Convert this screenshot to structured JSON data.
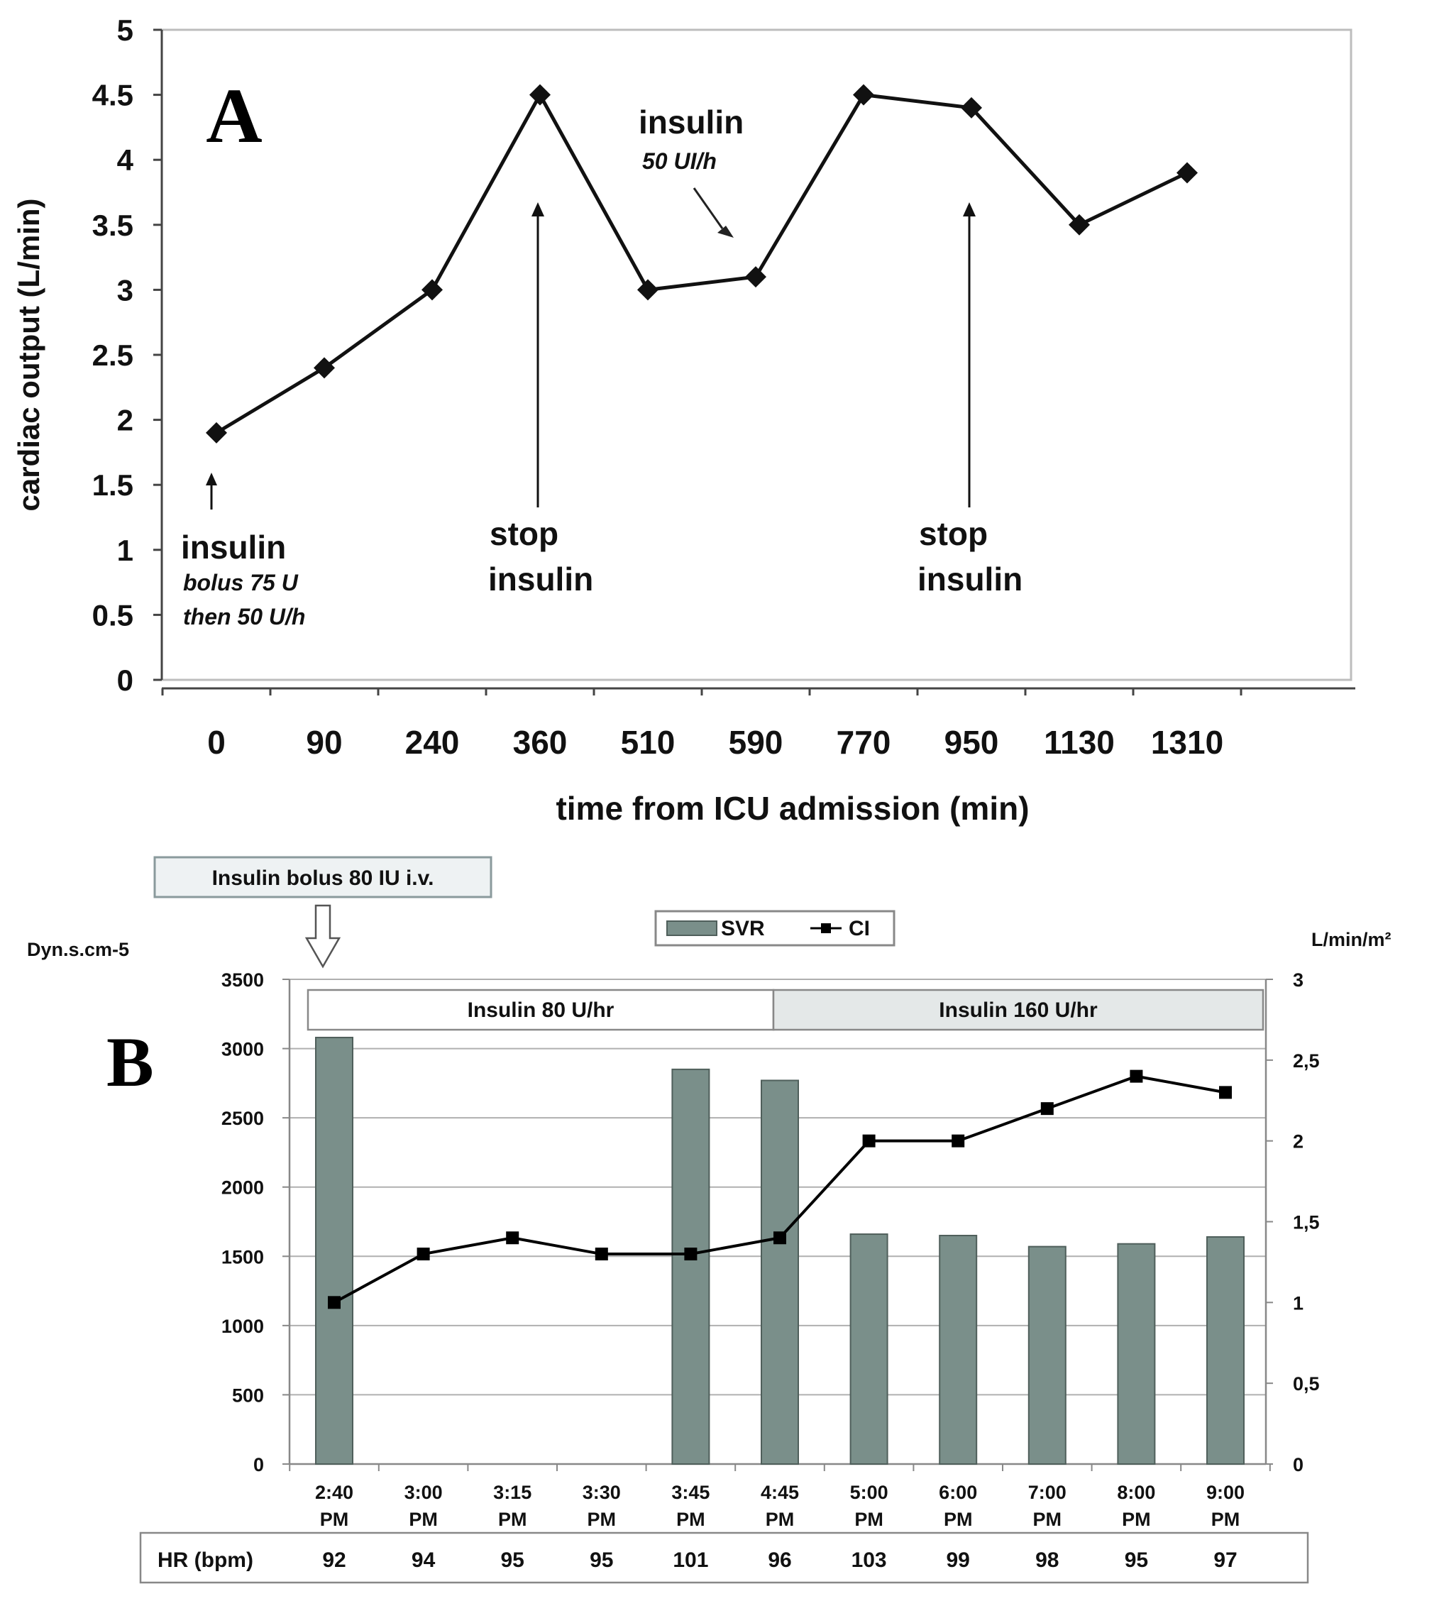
{
  "chart_data": [
    {
      "panel": "A",
      "type": "line",
      "xlabel": "time from ICU admission (min)",
      "ylabel": "cardiac output (L/min)",
      "ylim": [
        0,
        5
      ],
      "yticks": [
        0,
        0.5,
        1,
        1.5,
        2,
        2.5,
        3,
        3.5,
        4,
        4.5,
        5
      ],
      "ytick_labels": [
        "0",
        "0.5",
        "1",
        "1.5",
        "2",
        "2.5",
        "3",
        "3.5",
        "4",
        "4.5",
        "5"
      ],
      "categories": [
        "0",
        "90",
        "240",
        "360",
        "510",
        "590",
        "770",
        "950",
        "1130",
        "1310"
      ],
      "series": [
        {
          "name": "cardiac output",
          "values": [
            1.9,
            2.4,
            3.0,
            4.5,
            3.0,
            3.1,
            4.5,
            4.4,
            3.5,
            3.9
          ]
        }
      ],
      "annotations": [
        {
          "id": "ins1",
          "lines": [
            "insulin",
            "bolus 75 U",
            "then 50 U/h"
          ],
          "category_index": 0
        },
        {
          "id": "stop1",
          "lines": [
            "stop",
            "insulin"
          ],
          "category_index": 3
        },
        {
          "id": "ins2",
          "lines": [
            "insulin",
            "50 UI/h"
          ],
          "category_index": 5
        },
        {
          "id": "stop2",
          "lines": [
            "stop",
            "insulin"
          ],
          "category_index": 7
        }
      ],
      "grid": false,
      "marker": "diamond"
    },
    {
      "panel": "B",
      "type": "bar+line",
      "categories": [
        [
          "2:40",
          "PM"
        ],
        [
          "3:00",
          "PM"
        ],
        [
          "3:15",
          "PM"
        ],
        [
          "3:30",
          "PM"
        ],
        [
          "3:45",
          "PM"
        ],
        [
          "4:45",
          "PM"
        ],
        [
          "5:00",
          "PM"
        ],
        [
          "6:00",
          "PM"
        ],
        [
          "7:00",
          "PM"
        ],
        [
          "8:00",
          "PM"
        ],
        [
          "9:00",
          "PM"
        ]
      ],
      "left_axis": {
        "label": "Dyn.s.cm-5",
        "ylim": [
          0,
          3500
        ],
        "ticks": [
          "0",
          "500",
          "1000",
          "1500",
          "2000",
          "2500",
          "3000",
          "3500"
        ],
        "tick_values": [
          0,
          500,
          1000,
          1500,
          2000,
          2500,
          3000,
          3500
        ]
      },
      "right_axis": {
        "label": "L/min/m²",
        "ylim": [
          0,
          3
        ],
        "ticks": [
          "0",
          "0,5",
          "1",
          "1,5",
          "2",
          "2,5",
          "3"
        ],
        "tick_values": [
          0,
          0.5,
          1,
          1.5,
          2,
          2.5,
          3
        ]
      },
      "series": [
        {
          "name": "SVR",
          "type": "bar",
          "axis": "left",
          "color": "#7a8f8a",
          "values": [
            3080,
            null,
            null,
            null,
            2850,
            2770,
            1660,
            1650,
            1570,
            1590,
            1640
          ]
        },
        {
          "name": "CI",
          "type": "line",
          "axis": "right",
          "color": "#000000",
          "values": [
            1.0,
            1.3,
            1.4,
            1.3,
            1.3,
            1.4,
            2.0,
            2.0,
            2.2,
            2.4,
            2.3
          ]
        }
      ],
      "legend": [
        "SVR",
        "CI"
      ],
      "phases": [
        {
          "label": "Insulin 80 U/hr",
          "from_index": 0,
          "to_index": 5
        },
        {
          "label": "Insulin 160 U/hr",
          "from_index": 5,
          "to_index": 11
        }
      ],
      "top_annotation": "Insulin bolus 80 IU i.v.",
      "hr_row": {
        "label": "HR (bpm)",
        "values": [
          "92",
          "94",
          "95",
          "95",
          "101",
          "96",
          "103",
          "99",
          "98",
          "95",
          "97"
        ]
      },
      "grid": true
    }
  ],
  "labels": {
    "panel_a": "A",
    "panel_b": "B",
    "legend_svr": "SVR",
    "legend_ci": "CI"
  },
  "colors": {
    "bar": "#7a8f8a",
    "bar_edge": "#4f5f5b",
    "phase2_fill": "#e4e8e8",
    "grid": "#b0b0b0",
    "box_fill": "#eef2f3"
  }
}
